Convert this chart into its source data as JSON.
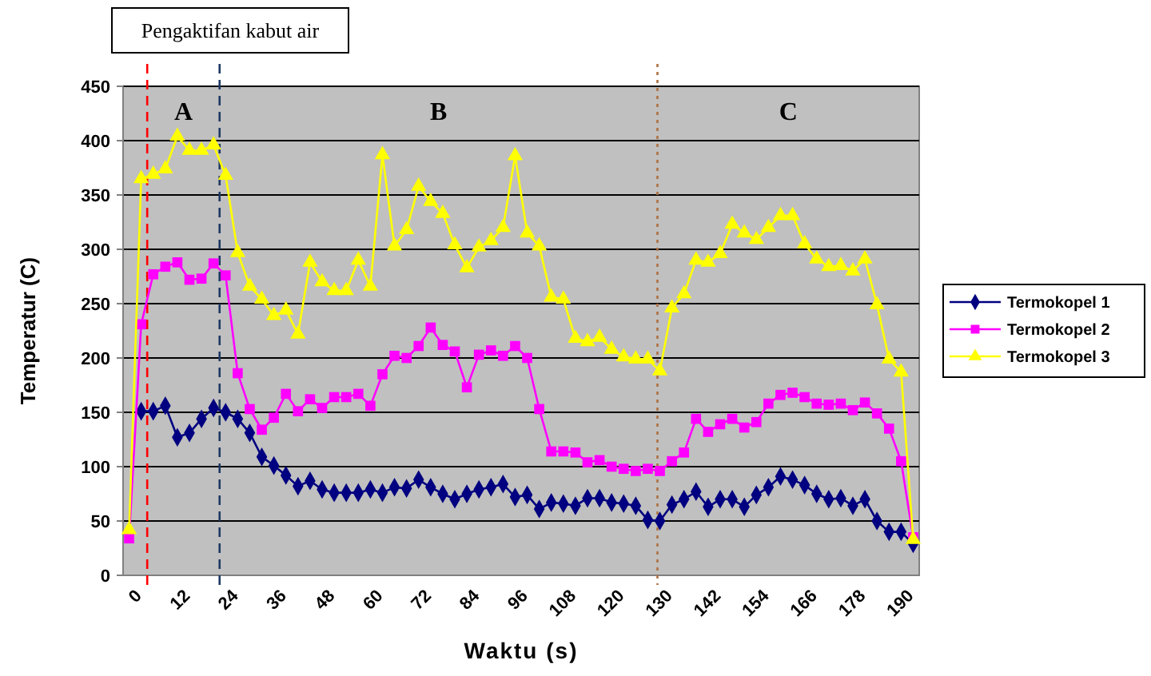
{
  "chart_data": {
    "type": "line",
    "xlabel": "Waktu (s)",
    "ylabel": "Temperatur (C)",
    "categories": [
      "0",
      null,
      null,
      null,
      "12",
      null,
      null,
      null,
      "24",
      null,
      null,
      null,
      "36",
      null,
      null,
      null,
      "48",
      null,
      null,
      null,
      "60",
      null,
      null,
      null,
      "72",
      null,
      null,
      null,
      "84",
      null,
      null,
      null,
      "96",
      null,
      null,
      null,
      "108",
      null,
      null,
      null,
      "120",
      null,
      null,
      null,
      "130",
      null,
      null,
      null,
      "142",
      null,
      null,
      null,
      "154",
      null,
      null,
      null,
      "166",
      null,
      null,
      null,
      "178",
      null,
      null,
      null,
      "190",
      null
    ],
    "ylim": [
      0,
      450
    ],
    "yticks": [
      0,
      50,
      100,
      150,
      200,
      250,
      300,
      350,
      400,
      450
    ],
    "grid": "y",
    "legend": "right",
    "series": [
      {
        "name": "Termokopel 1",
        "color": "#000080",
        "marker": "diamond",
        "values": [
          null,
          151,
          151,
          156,
          127,
          131,
          144,
          154,
          150,
          144,
          131,
          109,
          101,
          92,
          82,
          87,
          79,
          76,
          76,
          76,
          79,
          76,
          81,
          80,
          88,
          81,
          75,
          70,
          75,
          79,
          81,
          84,
          72,
          74,
          61,
          67,
          66,
          64,
          71,
          71,
          67,
          66,
          64,
          51,
          50,
          65,
          70,
          77,
          63,
          70,
          70,
          63,
          74,
          81,
          91,
          88,
          83,
          75,
          70,
          71,
          64,
          70,
          50,
          40,
          40,
          29
        ]
      },
      {
        "name": "Termokopel 2",
        "color": "#ff00ff",
        "marker": "square",
        "values": [
          34,
          231,
          277,
          284,
          288,
          272,
          273,
          287,
          276,
          186,
          153,
          134,
          145,
          167,
          151,
          162,
          154,
          164,
          164,
          167,
          156,
          185,
          202,
          200,
          211,
          228,
          212,
          206,
          173,
          203,
          207,
          202,
          211,
          200,
          153,
          114,
          114,
          113,
          104,
          106,
          100,
          98,
          96,
          98,
          96,
          105,
          113,
          144,
          132,
          139,
          144,
          136,
          141,
          158,
          166,
          168,
          164,
          158,
          157,
          158,
          152,
          159,
          149,
          135,
          105,
          35
        ]
      },
      {
        "name": "Termokopel 3",
        "color": "#ffff00",
        "marker": "triangle",
        "values": [
          42,
          365,
          369,
          374,
          404,
          391,
          391,
          396,
          368,
          297,
          266,
          254,
          239,
          244,
          222,
          288,
          270,
          262,
          262,
          290,
          266,
          387,
          303,
          318,
          358,
          344,
          333,
          304,
          283,
          302,
          308,
          320,
          386,
          315,
          303,
          256,
          254,
          218,
          215,
          219,
          208,
          201,
          199,
          199,
          188,
          246,
          259,
          290,
          288,
          296,
          323,
          315,
          309,
          320,
          331,
          331,
          305,
          291,
          284,
          285,
          280,
          291,
          249,
          199,
          187,
          33
        ]
      }
    ],
    "annotations": [
      "Pengaktifan kabut air",
      "A",
      "B",
      "C"
    ]
  }
}
